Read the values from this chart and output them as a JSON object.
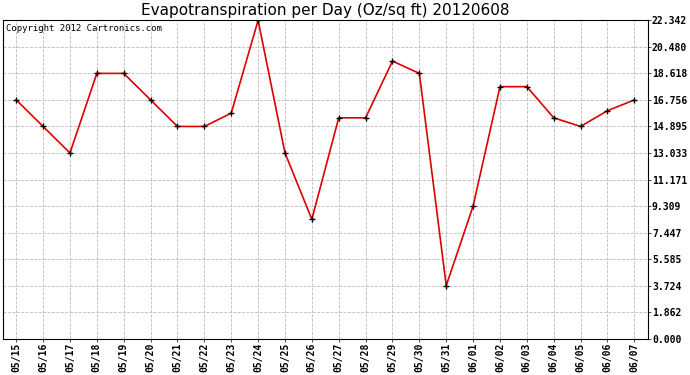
{
  "title": "Evapotranspiration per Day (Oz/sq ft) 20120608",
  "copyright": "Copyright 2012 Cartronics.com",
  "x_labels": [
    "05/15",
    "05/16",
    "05/17",
    "05/18",
    "05/19",
    "05/20",
    "05/21",
    "05/22",
    "05/23",
    "05/24",
    "05/25",
    "05/26",
    "05/27",
    "05/28",
    "05/29",
    "05/30",
    "05/31",
    "06/01",
    "06/02",
    "06/03",
    "06/04",
    "06/05",
    "06/06",
    "06/07"
  ],
  "y_values": [
    16.756,
    14.895,
    13.033,
    18.618,
    18.618,
    16.756,
    14.895,
    14.895,
    15.826,
    22.342,
    13.033,
    8.378,
    15.5,
    15.5,
    19.48,
    18.618,
    3.724,
    9.309,
    17.687,
    17.687,
    15.5,
    14.895,
    16.0,
    16.756
  ],
  "line_color": "#dd0000",
  "marker": "+",
  "marker_size": 5,
  "bg_color": "#ffffff",
  "plot_bg_color": "#ffffff",
  "grid_color": "#bbbbbb",
  "y_ticks": [
    0.0,
    1.862,
    3.724,
    5.585,
    7.447,
    9.309,
    11.171,
    13.033,
    14.895,
    16.756,
    18.618,
    20.48,
    22.342
  ],
  "ylim": [
    0.0,
    22.342
  ],
  "title_fontsize": 11,
  "copyright_fontsize": 6.5,
  "tick_fontsize": 7,
  "ytick_fontsize": 7
}
